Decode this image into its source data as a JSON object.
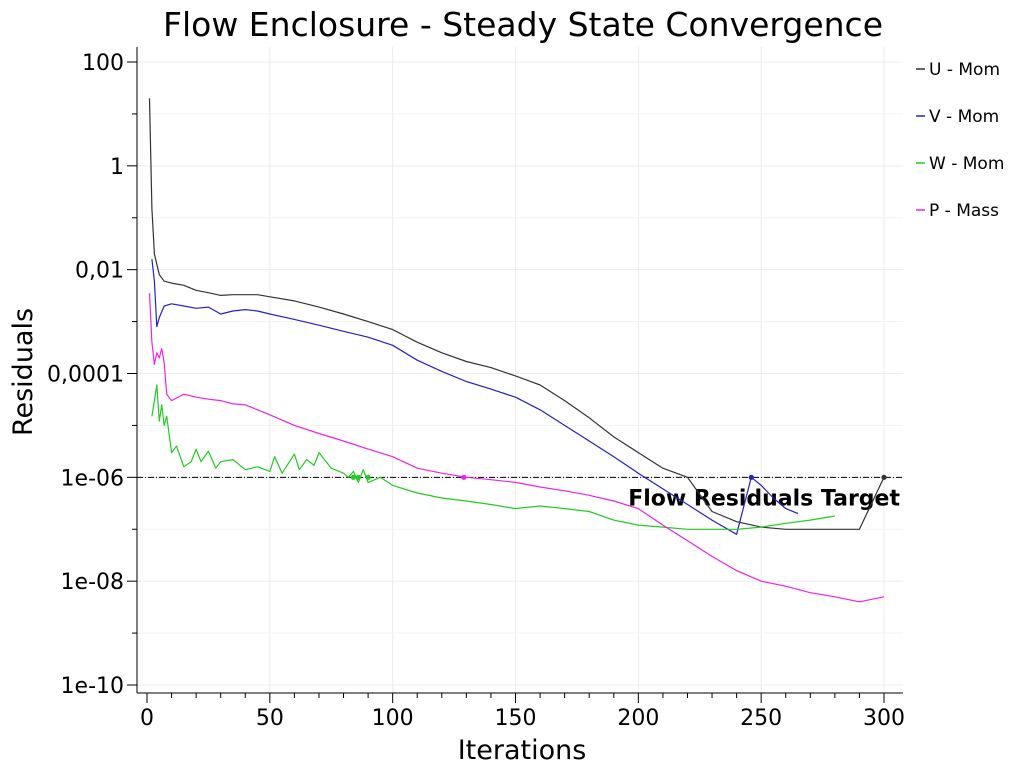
{
  "chart_data": {
    "type": "line",
    "title": "Flow Enclosure - Steady State Convergence",
    "xlabel": "Iterations",
    "ylabel": "Residuals",
    "xlim": [
      0,
      300
    ],
    "ylim": [
      1e-10,
      100
    ],
    "yscale": "log",
    "grid": true,
    "legend_position": "right",
    "x_ticks": [
      0,
      50,
      100,
      150,
      200,
      250,
      300
    ],
    "y_ticks": [
      {
        "value": 100,
        "label": "100"
      },
      {
        "value": 1,
        "label": "1"
      },
      {
        "value": 0.01,
        "label": "0,01"
      },
      {
        "value": 0.0001,
        "label": "0,0001"
      },
      {
        "value": 1e-06,
        "label": "1e-06"
      },
      {
        "value": 1e-08,
        "label": "1e-08"
      },
      {
        "value": 1e-10,
        "label": "1e-10"
      }
    ],
    "target": {
      "label": "Flow Residuals Target",
      "value": 1e-06
    },
    "series": [
      {
        "name": "U - Mom",
        "color": "#333333",
        "x": [
          1,
          2,
          3,
          5,
          7,
          10,
          15,
          20,
          25,
          30,
          35,
          40,
          45,
          50,
          60,
          70,
          80,
          90,
          100,
          110,
          120,
          130,
          140,
          150,
          160,
          170,
          180,
          190,
          200,
          210,
          220,
          230,
          240,
          250,
          260,
          270,
          280,
          290,
          300
        ],
        "y": [
          20,
          0.15,
          0.02,
          0.008,
          0.006,
          0.0055,
          0.005,
          0.004,
          0.0036,
          0.0032,
          0.0033,
          0.0033,
          0.0033,
          0.003,
          0.0025,
          0.0019,
          0.0014,
          0.001,
          0.0007,
          0.0004,
          0.00025,
          0.00017,
          0.00013,
          9e-05,
          6e-05,
          3e-05,
          1.4e-05,
          6e-06,
          3e-06,
          1.5e-06,
          1e-06,
          2.2e-07,
          1.4e-07,
          1.1e-07,
          1e-07,
          1e-07,
          1e-07,
          1e-07,
          1e-06
        ]
      },
      {
        "name": "V - Mom",
        "color": "#2222cc",
        "x": [
          2,
          3,
          4,
          5,
          7,
          10,
          15,
          20,
          25,
          30,
          35,
          40,
          45,
          50,
          60,
          70,
          80,
          90,
          100,
          110,
          120,
          130,
          140,
          150,
          160,
          170,
          180,
          190,
          200,
          210,
          220,
          230,
          240,
          246,
          250,
          255,
          260,
          265
        ],
        "y": [
          0.016,
          0.006,
          0.0008,
          0.0012,
          0.002,
          0.0022,
          0.002,
          0.0018,
          0.0019,
          0.0014,
          0.0016,
          0.0017,
          0.0016,
          0.0014,
          0.0011,
          0.00085,
          0.00065,
          0.0005,
          0.00035,
          0.00018,
          0.00011,
          7e-05,
          5e-05,
          3.5e-05,
          2e-05,
          1e-05,
          5e-06,
          2.5e-06,
          1.2e-06,
          6e-07,
          3e-07,
          1.5e-07,
          8e-08,
          1e-06,
          7e-07,
          4e-07,
          2.5e-07,
          2e-07
        ]
      },
      {
        "name": "W - Mom",
        "color": "#22cc22",
        "x": [
          2,
          3,
          4,
          5,
          6,
          7,
          8,
          10,
          12,
          15,
          18,
          20,
          22,
          25,
          28,
          30,
          35,
          40,
          45,
          50,
          52,
          55,
          60,
          62,
          65,
          68,
          70,
          75,
          80,
          82,
          84,
          86,
          88,
          90,
          95,
          100,
          110,
          120,
          130,
          140,
          150,
          160,
          170,
          180,
          190,
          200,
          210,
          220,
          230,
          240,
          250,
          260,
          270,
          280
        ],
        "y": [
          1.5e-05,
          3e-05,
          6e-05,
          1.2e-05,
          2.5e-05,
          1e-05,
          1.5e-05,
          3e-06,
          4e-06,
          1.6e-06,
          2e-06,
          3.5e-06,
          2e-06,
          3.2e-06,
          1.5e-06,
          2e-06,
          2.2e-06,
          1.4e-06,
          1.6e-06,
          1.3e-06,
          2.5e-06,
          1.2e-06,
          2.8e-06,
          1.4e-06,
          2.2e-06,
          1.7e-06,
          3e-06,
          1.5e-06,
          1.2e-06,
          1e-06,
          1.3e-06,
          8e-07,
          1.4e-06,
          8e-07,
          1e-06,
          7e-07,
          5e-07,
          4e-07,
          3.5e-07,
          3e-07,
          2.5e-07,
          2.8e-07,
          2.5e-07,
          2.2e-07,
          1.5e-07,
          1.2e-07,
          1.1e-07,
          1e-07,
          1e-07,
          1e-07,
          1.1e-07,
          1.3e-07,
          1.5e-07,
          1.8e-07
        ]
      },
      {
        "name": "P - Mass",
        "color": "#ee22ee",
        "x": [
          1,
          2,
          3,
          4,
          5,
          6,
          7,
          8,
          10,
          15,
          20,
          25,
          30,
          35,
          40,
          45,
          50,
          60,
          70,
          80,
          90,
          100,
          110,
          120,
          130,
          140,
          150,
          160,
          170,
          180,
          190,
          200,
          210,
          220,
          230,
          240,
          250,
          260,
          270,
          280,
          290,
          300
        ],
        "y": [
          0.0035,
          0.0004,
          0.00015,
          0.00025,
          0.0002,
          0.0003,
          0.00016,
          4e-05,
          3e-05,
          4e-05,
          3.5e-05,
          3.2e-05,
          3e-05,
          2.6e-05,
          2.5e-05,
          2e-05,
          1.6e-05,
          1e-05,
          7e-06,
          5e-06,
          3.5e-06,
          2.5e-06,
          1.5e-06,
          1.2e-06,
          1e-06,
          9e-07,
          8e-07,
          6.5e-07,
          5.5e-07,
          4.5e-07,
          3.5e-07,
          2.5e-07,
          1.2e-07,
          6e-08,
          3e-08,
          1.6e-08,
          1e-08,
          8e-09,
          6e-09,
          5e-09,
          4e-09,
          5e-09
        ]
      }
    ],
    "target_crossings": [
      {
        "series": "W - Mom",
        "x": 84,
        "y": 1e-06
      },
      {
        "series": "W - Mom",
        "x": 86,
        "y": 1e-06
      },
      {
        "series": "W - Mom",
        "x": 90,
        "y": 1e-06
      },
      {
        "series": "P - Mass",
        "x": 129,
        "y": 1e-06
      },
      {
        "series": "V - Mom",
        "x": 246,
        "y": 1e-06
      },
      {
        "series": "U - Mom",
        "x": 300,
        "y": 1e-06
      }
    ]
  }
}
